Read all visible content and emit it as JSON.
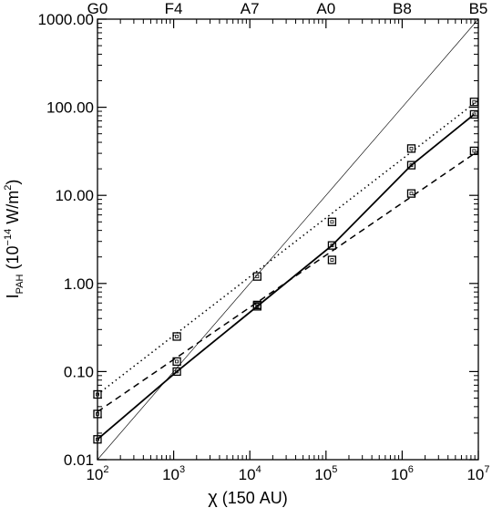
{
  "chart_data": {
    "type": "line",
    "xscale": "log",
    "yscale": "log",
    "xlim": [
      100,
      10000000
    ],
    "ylim": [
      0.01,
      1000
    ],
    "grid": false,
    "xlabel": {
      "symbol": "χ",
      "rest": " (150 AU)"
    },
    "ylabel": {
      "base": "I",
      "sub": "PAH",
      "open": " (10",
      "sup": "−14",
      "mid": " W/m",
      "sup2": "2",
      "close": ")"
    },
    "x_ticks": [
      {
        "value": 100,
        "base": "10",
        "exp": "2"
      },
      {
        "value": 1000,
        "base": "10",
        "exp": "3"
      },
      {
        "value": 10000,
        "base": "10",
        "exp": "4"
      },
      {
        "value": 100000,
        "base": "10",
        "exp": "5"
      },
      {
        "value": 1000000,
        "base": "10",
        "exp": "6"
      },
      {
        "value": 10000000,
        "base": "10",
        "exp": "7"
      }
    ],
    "y_ticks": [
      {
        "value": 0.01,
        "label": "0.01"
      },
      {
        "value": 0.1,
        "label": "0.10"
      },
      {
        "value": 1,
        "label": "1.00"
      },
      {
        "value": 10,
        "label": "10.00"
      },
      {
        "value": 100,
        "label": "100.00"
      },
      {
        "value": 1000,
        "label": "1000.00"
      }
    ],
    "top_ticks": [
      {
        "value": 100,
        "label": "G0"
      },
      {
        "value": 1000,
        "label": "F4"
      },
      {
        "value": 10000,
        "label": "A7"
      },
      {
        "value": 100000,
        "label": "A0"
      },
      {
        "value": 1000000,
        "label": "B8"
      },
      {
        "value": 10000000,
        "label": "B5"
      }
    ],
    "reference_line": {
      "style": "thin",
      "x": [
        100,
        10000000
      ],
      "y": [
        0.01,
        1000
      ]
    },
    "series": [
      {
        "style": "dotted",
        "points_x": [
          100,
          1100,
          12500,
          120000,
          1320000,
          8800000
        ],
        "points_y": [
          0.055,
          0.25,
          1.2,
          5.0,
          34,
          115
        ],
        "fit_x": [
          100,
          10000000
        ],
        "fit_y": [
          0.055,
          120
        ]
      },
      {
        "style": "solid",
        "points_x": [
          100,
          1100,
          12500,
          120000,
          1320000,
          8800000
        ],
        "points_y": [
          0.017,
          0.1,
          0.55,
          2.7,
          22,
          83
        ],
        "line_x": [
          100,
          1100,
          12500,
          120000,
          1320000,
          8800000
        ],
        "line_y": [
          0.017,
          0.1,
          0.55,
          2.7,
          22,
          83
        ]
      },
      {
        "style": "dashed",
        "points_x": [
          100,
          1100,
          12500,
          120000,
          1320000,
          8800000
        ],
        "points_y": [
          0.033,
          0.13,
          0.57,
          1.85,
          10.5,
          32
        ],
        "fit_x": [
          100,
          10000000
        ],
        "fit_y": [
          0.035,
          32
        ]
      }
    ]
  }
}
